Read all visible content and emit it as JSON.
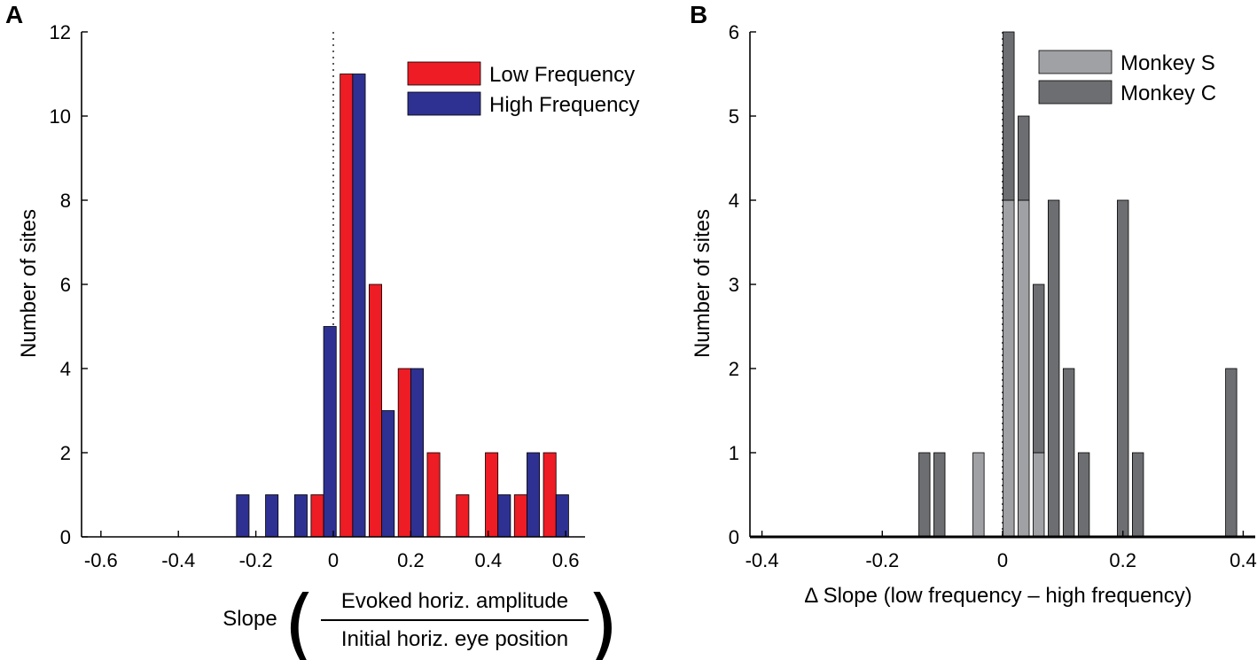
{
  "chart_data": [
    {
      "panel_label": "A",
      "type": "bar",
      "ylabel": "Number of sites",
      "xlabel_prefix": "Slope",
      "xlabel_numerator": "Evoked horiz. amplitude",
      "xlabel_denominator": "Initial horiz. eye position",
      "xlim": [
        -0.65,
        0.65
      ],
      "ylim": [
        0,
        12
      ],
      "xticks": [
        -0.6,
        -0.4,
        -0.2,
        0,
        0.2,
        0.4,
        0.6
      ],
      "xtick_labels": [
        "-0.6",
        "-0.4",
        "-0.2",
        "0",
        "0.2",
        "0.4",
        "0.6"
      ],
      "yticks": [
        0,
        2,
        4,
        6,
        8,
        10,
        12
      ],
      "ytick_labels": [
        "0",
        "2",
        "4",
        "6",
        "8",
        "10",
        "12"
      ],
      "bin_centers": [
        -0.25,
        -0.175,
        -0.1,
        -0.025,
        0.05,
        0.125,
        0.2,
        0.275,
        0.35,
        0.425,
        0.5,
        0.575
      ],
      "series": [
        {
          "name": "Low Frequency",
          "color": "#ee1c24",
          "values": [
            0,
            0,
            0,
            1,
            11,
            6,
            4,
            2,
            1,
            2,
            1,
            2
          ]
        },
        {
          "name": "High Frequency",
          "color": "#2e3192",
          "values": [
            1,
            1,
            1,
            5,
            11,
            3,
            4,
            0,
            0,
            1,
            2,
            1
          ]
        }
      ],
      "zero_line": "dotted vertical at x=0",
      "legend_position": "top-right"
    },
    {
      "panel_label": "B",
      "type": "bar",
      "stacked": true,
      "ylabel": "Number of sites",
      "xlabel": "Δ Slope (low frequency – high frequency)",
      "xlim": [
        -0.42,
        0.42
      ],
      "ylim": [
        0,
        6
      ],
      "xticks": [
        -0.4,
        -0.2,
        0,
        0.2,
        0.4
      ],
      "xtick_labels": [
        "-0.4",
        "-0.2",
        "0",
        "0.2",
        "0.4"
      ],
      "yticks": [
        0,
        1,
        2,
        3,
        4,
        5,
        6
      ],
      "ytick_labels": [
        "0",
        "1",
        "2",
        "3",
        "4",
        "5",
        "6"
      ],
      "bin_centers": [
        -0.13,
        -0.105,
        -0.04,
        0.01,
        0.035,
        0.06,
        0.085,
        0.11,
        0.135,
        0.2,
        0.225,
        0.38
      ],
      "series": [
        {
          "name": "Monkey S",
          "color": "#a0a1a4",
          "values": [
            0,
            0,
            1,
            4,
            4,
            1,
            0,
            0,
            0,
            0,
            0,
            0
          ]
        },
        {
          "name": "Monkey C",
          "color": "#6d6e71",
          "values": [
            1,
            1,
            0,
            2,
            1,
            2,
            4,
            2,
            1,
            4,
            1,
            2
          ]
        }
      ],
      "zero_line": "dotted vertical at x=0",
      "legend_position": "top-right"
    }
  ]
}
